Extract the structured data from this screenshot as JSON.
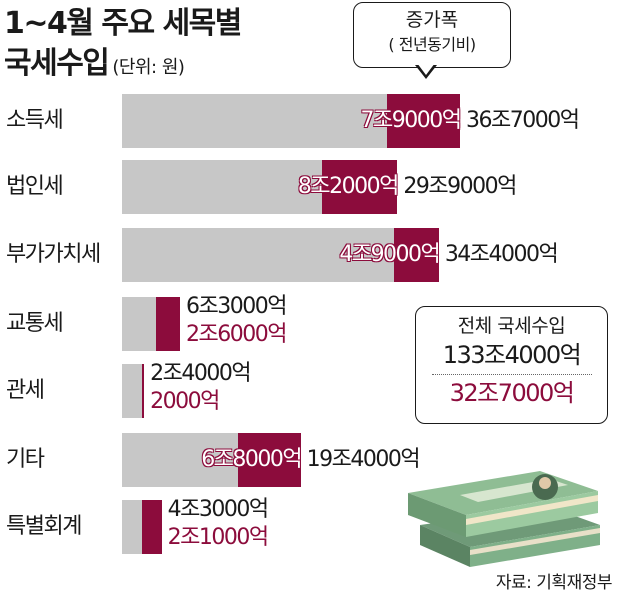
{
  "title": {
    "line1": "1~4월 주요 세목별",
    "line2": "국세수입",
    "unit": "(단위: 원)"
  },
  "legend_callout": {
    "line1": "증가폭",
    "line2": "( 전년동기비)"
  },
  "summary": {
    "label": "전체 국세수입",
    "total": "133조4000억",
    "increase": "32조7000억"
  },
  "source": "자료: 기획재정부",
  "colors": {
    "base_bar": "#c7c7c7",
    "increase_bar": "#8c0c3c",
    "text": "#1a1a1a"
  },
  "chart_data": {
    "type": "bar",
    "orientation": "horizontal",
    "stacked": true,
    "units": "억원",
    "categories": [
      "소득세",
      "법인세",
      "부가가치세",
      "교통세",
      "관세",
      "기타",
      "특별회계"
    ],
    "series": [
      {
        "name": "증가폭",
        "values": [
          79000,
          82000,
          49000,
          26000,
          2000,
          68000,
          21000
        ]
      }
    ],
    "totals": [
      367000,
      299000,
      344000,
      63000,
      24000,
      194000,
      43000
    ],
    "total_labels": [
      "36조7000억",
      "29조9000억",
      "34조4000억",
      "6조3000억",
      "2조4000억",
      "19조4000억",
      "4조3000억"
    ],
    "increase_labels": [
      "7조9000억",
      "8조2000억",
      "4조9000억",
      "2조6000억",
      "2000억",
      "6조8000억",
      "2조1000억"
    ],
    "increase_label_inside": [
      true,
      true,
      true,
      false,
      false,
      true,
      false
    ]
  }
}
